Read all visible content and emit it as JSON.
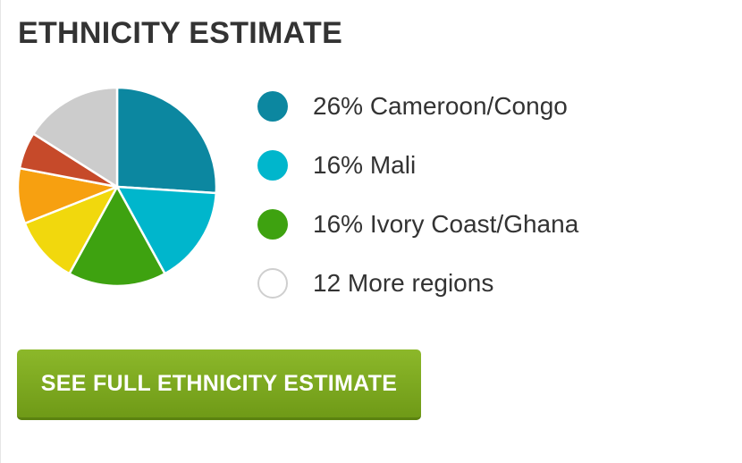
{
  "title": "ETHNICITY ESTIMATE",
  "chart_data": {
    "type": "pie",
    "slices": [
      {
        "name": "Cameroon/Congo",
        "value": 26,
        "color": "#0c87a0"
      },
      {
        "name": "Mali",
        "value": 16,
        "color": "#00b6cc"
      },
      {
        "name": "Ivory Coast/Ghana",
        "value": 16,
        "color": "#3ea210"
      },
      {
        "name": "",
        "value": 11,
        "color": "#f1d80d"
      },
      {
        "name": "",
        "value": 9,
        "color": "#f7a010"
      },
      {
        "name": "",
        "value": 6,
        "color": "#c64a2a"
      },
      {
        "name": "",
        "value": 16,
        "color": "#cccccc"
      }
    ]
  },
  "legend": [
    {
      "text": "26% Cameroon/Congo",
      "color": "#0c87a0"
    },
    {
      "text": "16% Mali",
      "color": "#00b6cc"
    },
    {
      "text": "16% Ivory Coast/Ghana",
      "color": "#3ea210"
    },
    {
      "text": "12 More regions",
      "color": "#ffffff"
    }
  ],
  "cta_label": "SEE FULL ETHNICITY ESTIMATE"
}
